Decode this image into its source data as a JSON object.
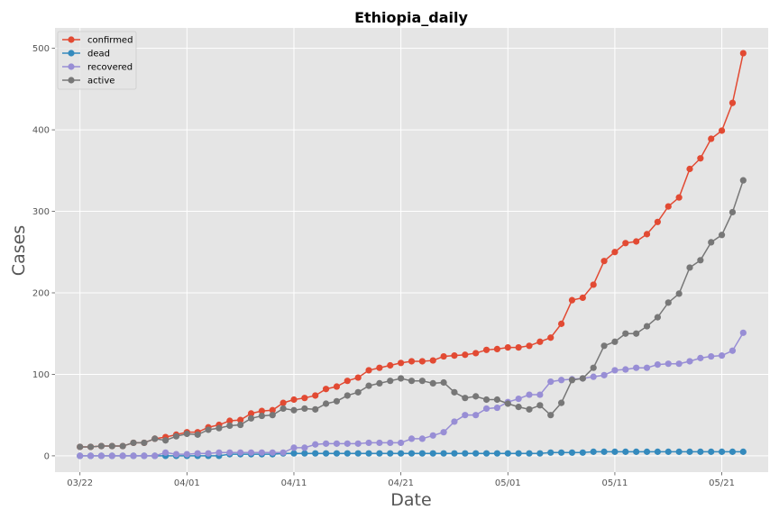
{
  "chart_data": {
    "type": "line",
    "title": "Ethiopia_daily",
    "xlabel": "Date",
    "ylabel": "Cases",
    "x_start": "2020-03-22",
    "x_tick_labels": [
      "03/22",
      "04/01",
      "04/11",
      "04/21",
      "05/01",
      "05/11",
      "05/21"
    ],
    "ylim": [
      -20,
      525
    ],
    "y_ticks": [
      0,
      100,
      200,
      300,
      400,
      500
    ],
    "grid": true,
    "legend_position": "top-left",
    "series": [
      {
        "name": "confirmed",
        "color": "#e24a33",
        "values": [
          11,
          11,
          12,
          12,
          12,
          16,
          16,
          21,
          23,
          26,
          29,
          29,
          35,
          38,
          43,
          44,
          52,
          55,
          56,
          65,
          69,
          71,
          74,
          82,
          85,
          92,
          96,
          105,
          108,
          111,
          114,
          116,
          116,
          117,
          122,
          123,
          124,
          126,
          130,
          131,
          133,
          133,
          135,
          140,
          145,
          162,
          191,
          194,
          210,
          239,
          250,
          261,
          263,
          272,
          287,
          306,
          317,
          352,
          365,
          389,
          399,
          433,
          494
        ]
      },
      {
        "name": "dead",
        "color": "#348abd",
        "values": [
          0,
          0,
          0,
          0,
          0,
          0,
          0,
          0,
          0,
          0,
          0,
          0,
          0,
          0,
          2,
          2,
          2,
          2,
          2,
          3,
          3,
          3,
          3,
          3,
          3,
          3,
          3,
          3,
          3,
          3,
          3,
          3,
          3,
          3,
          3,
          3,
          3,
          3,
          3,
          3,
          3,
          3,
          3,
          3,
          4,
          4,
          4,
          4,
          5,
          5,
          5,
          5,
          5,
          5,
          5,
          5,
          5,
          5,
          5,
          5,
          5,
          5,
          5
        ]
      },
      {
        "name": "recovered",
        "color": "#988ed5",
        "values": [
          0,
          0,
          0,
          0,
          0,
          0,
          0,
          0,
          4,
          2,
          2,
          3,
          3,
          4,
          4,
          4,
          4,
          4,
          4,
          4,
          10,
          10,
          14,
          15,
          15,
          15,
          15,
          16,
          16,
          16,
          16,
          21,
          21,
          25,
          29,
          42,
          50,
          50,
          58,
          59,
          66,
          70,
          75,
          75,
          91,
          93,
          94,
          95,
          97,
          99,
          105,
          106,
          108,
          108,
          112,
          113,
          113,
          116,
          120,
          122,
          123,
          129,
          151
        ]
      },
      {
        "name": "active",
        "color": "#777777",
        "values": [
          11,
          11,
          12,
          12,
          12,
          16,
          16,
          21,
          19,
          24,
          27,
          26,
          32,
          34,
          37,
          38,
          46,
          49,
          50,
          58,
          56,
          58,
          57,
          64,
          67,
          74,
          78,
          86,
          89,
          92,
          95,
          92,
          92,
          89,
          90,
          78,
          71,
          73,
          69,
          69,
          64,
          60,
          57,
          62,
          50,
          65,
          93,
          95,
          108,
          135,
          140,
          150,
          150,
          159,
          170,
          188,
          199,
          231,
          240,
          262,
          271,
          299,
          338
        ]
      }
    ]
  }
}
